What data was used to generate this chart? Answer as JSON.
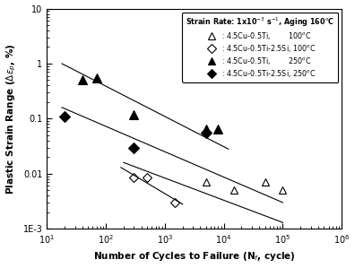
{
  "xlabel": "Number of Cycles to Failure (N$_f$, cycle)",
  "ylabel": "Plastic Strain Range ($\\Delta\\varepsilon_p$, %)",
  "xlim": [
    10,
    1000000
  ],
  "ylim": [
    0.001,
    10
  ],
  "background_color": "#ffffff",
  "series": [
    {
      "name": "open_triangle_100C",
      "marker": "^",
      "filled": false,
      "x": [
        300,
        5000,
        15000,
        50000,
        100000
      ],
      "y": [
        0.12,
        0.007,
        0.005,
        0.007,
        0.005
      ]
    },
    {
      "name": "open_diamond_100C",
      "marker": "D",
      "filled": false,
      "x": [
        300,
        500,
        1500
      ],
      "y": [
        0.0085,
        0.0085,
        0.003
      ]
    },
    {
      "name": "filled_triangle_250C",
      "marker": "^",
      "filled": true,
      "x": [
        40,
        70,
        300,
        5000,
        8000
      ],
      "y": [
        0.5,
        0.55,
        0.12,
        0.065,
        0.065
      ]
    },
    {
      "name": "filled_diamond_250C",
      "marker": "D",
      "filled": true,
      "x": [
        20,
        300,
        5000
      ],
      "y": [
        0.11,
        0.03,
        0.055
      ]
    }
  ],
  "fit_lines": [
    {
      "x": [
        18,
        12000
      ],
      "y": [
        1.0,
        0.028
      ]
    },
    {
      "x": [
        18,
        100000
      ],
      "y": [
        0.16,
        0.003
      ]
    },
    {
      "x": [
        200,
        100000
      ],
      "y": [
        0.016,
        0.0013
      ]
    },
    {
      "x": [
        180,
        2000
      ],
      "y": [
        0.013,
        0.0028
      ]
    }
  ],
  "legend_title": "Strain Rate: 1x10$^{-3}$ s$^{-1}$, Aging 160$^o$C",
  "legend_labels": [
    ": 4.5Cu-0.5Ti,        100$^o$C",
    ": 4.5Cu-0.5Ti-2.5Si, 100$^o$C",
    ": 4.5Cu-0.5Ti,        250$^o$C",
    ": 4.5Cu-0.5Ti-2.5Si, 250$^o$C"
  ]
}
